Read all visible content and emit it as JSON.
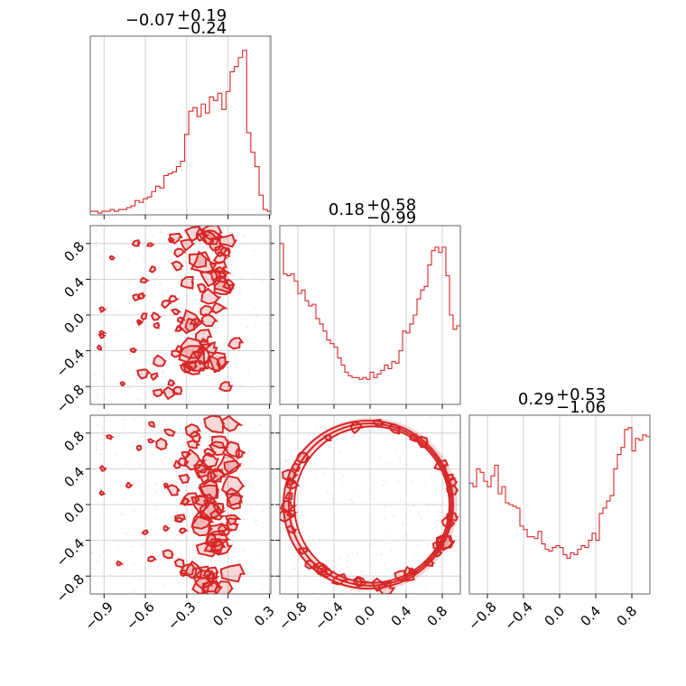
{
  "chart_data": [
    {
      "type": "histogram",
      "panel": "diag-1",
      "title_main": "−0.07",
      "title_sup": "+0.19",
      "title_sub": "−0.24",
      "x": [
        -0.99,
        -0.96,
        -0.93,
        -0.9,
        -0.87,
        -0.84,
        -0.81,
        -0.78,
        -0.75,
        -0.72,
        -0.69,
        -0.66,
        -0.63,
        -0.6,
        -0.57,
        -0.54,
        -0.51,
        -0.48,
        -0.45,
        -0.42,
        -0.39,
        -0.36,
        -0.33,
        -0.3,
        -0.27,
        -0.24,
        -0.21,
        -0.18,
        -0.15,
        -0.12,
        -0.09,
        -0.06,
        -0.03,
        0.0,
        0.03,
        0.06,
        0.09,
        0.12,
        0.15,
        0.18,
        0.21,
        0.24,
        0.27,
        0.3
      ],
      "values": [
        0.02,
        0.02,
        0.01,
        0.02,
        0.02,
        0.03,
        0.02,
        0.03,
        0.03,
        0.04,
        0.05,
        0.08,
        0.07,
        0.09,
        0.1,
        0.13,
        0.16,
        0.15,
        0.22,
        0.23,
        0.24,
        0.27,
        0.3,
        0.45,
        0.58,
        0.6,
        0.55,
        0.62,
        0.57,
        0.66,
        0.64,
        0.68,
        0.59,
        0.69,
        0.8,
        0.83,
        0.88,
        0.92,
        0.46,
        0.35,
        0.27,
        0.11,
        0.03,
        0.02
      ],
      "xlim": [
        -1.0,
        0.31
      ],
      "xticks": [
        "−0.9",
        "−0.6",
        "−0.3",
        "0.0",
        "0.3"
      ],
      "xtick_values": [
        -0.9,
        -0.6,
        -0.3,
        0.0,
        0.3
      ]
    },
    {
      "type": "histogram",
      "panel": "diag-2",
      "title_main": "0.18",
      "title_sup": "+0.58",
      "title_sub": "−0.99",
      "x": [
        -0.98,
        -0.94,
        -0.9,
        -0.86,
        -0.82,
        -0.78,
        -0.74,
        -0.7,
        -0.66,
        -0.62,
        -0.58,
        -0.54,
        -0.5,
        -0.46,
        -0.42,
        -0.38,
        -0.34,
        -0.3,
        -0.26,
        -0.22,
        -0.18,
        -0.14,
        -0.1,
        -0.06,
        -0.02,
        0.02,
        0.06,
        0.1,
        0.14,
        0.18,
        0.22,
        0.26,
        0.3,
        0.34,
        0.38,
        0.42,
        0.46,
        0.5,
        0.54,
        0.58,
        0.62,
        0.66,
        0.7,
        0.74,
        0.78,
        0.82,
        0.86,
        0.9,
        0.94,
        0.98
      ],
      "values": [
        0.9,
        0.73,
        0.72,
        0.73,
        0.69,
        0.62,
        0.64,
        0.58,
        0.55,
        0.56,
        0.48,
        0.45,
        0.41,
        0.36,
        0.34,
        0.32,
        0.26,
        0.22,
        0.18,
        0.16,
        0.15,
        0.15,
        0.14,
        0.15,
        0.14,
        0.18,
        0.15,
        0.17,
        0.19,
        0.22,
        0.2,
        0.24,
        0.23,
        0.3,
        0.41,
        0.4,
        0.45,
        0.5,
        0.59,
        0.64,
        0.66,
        0.78,
        0.86,
        0.88,
        0.85,
        0.88,
        0.72,
        0.5,
        0.42,
        0.44
      ],
      "xlim": [
        -1.0,
        1.0
      ]
    },
    {
      "type": "histogram",
      "panel": "diag-3",
      "title_main": "0.29",
      "title_sup": "+0.53",
      "title_sub": "−1.06",
      "x": [
        -0.98,
        -0.94,
        -0.9,
        -0.86,
        -0.82,
        -0.78,
        -0.74,
        -0.7,
        -0.66,
        -0.62,
        -0.58,
        -0.54,
        -0.5,
        -0.46,
        -0.42,
        -0.38,
        -0.34,
        -0.3,
        -0.26,
        -0.22,
        -0.18,
        -0.14,
        -0.1,
        -0.06,
        -0.02,
        0.02,
        0.06,
        0.1,
        0.14,
        0.18,
        0.22,
        0.26,
        0.3,
        0.34,
        0.38,
        0.42,
        0.46,
        0.5,
        0.54,
        0.58,
        0.62,
        0.66,
        0.7,
        0.74,
        0.78,
        0.82,
        0.86,
        0.9,
        0.94,
        0.98
      ],
      "values": [
        0.62,
        0.6,
        0.7,
        0.68,
        0.63,
        0.6,
        0.66,
        0.72,
        0.56,
        0.6,
        0.51,
        0.5,
        0.49,
        0.48,
        0.38,
        0.36,
        0.32,
        0.32,
        0.31,
        0.35,
        0.28,
        0.25,
        0.24,
        0.26,
        0.27,
        0.26,
        0.22,
        0.2,
        0.23,
        0.22,
        0.25,
        0.27,
        0.26,
        0.3,
        0.34,
        0.3,
        0.45,
        0.48,
        0.52,
        0.55,
        0.7,
        0.78,
        0.82,
        0.92,
        0.93,
        0.8,
        0.87,
        0.86,
        0.89,
        0.88
      ],
      "xlim": [
        -1.0,
        1.0
      ],
      "xticks": [
        "−0.8",
        "−0.4",
        "0.0",
        "0.4",
        "0.8"
      ],
      "xtick_values": [
        -0.8,
        -0.4,
        0.0,
        0.4,
        0.8
      ]
    },
    {
      "type": "scatter",
      "panel": "corner-21",
      "xlim": [
        -1.0,
        0.31
      ],
      "ylim": [
        -1.0,
        1.0
      ],
      "yticks": [
        "−0.8",
        "−0.4",
        "0.0",
        "0.4",
        "0.8"
      ],
      "ytick_values": [
        -0.8,
        -0.4,
        0.0,
        0.4,
        0.8
      ]
    },
    {
      "type": "scatter",
      "panel": "corner-31",
      "xlim": [
        -1.0,
        0.31
      ],
      "ylim": [
        -1.0,
        1.0
      ],
      "xticks": [
        "−0.9",
        "−0.6",
        "−0.3",
        "0.0",
        "0.3"
      ],
      "xtick_values": [
        -0.9,
        -0.6,
        -0.3,
        0.0,
        0.3
      ],
      "yticks": [
        "−0.8",
        "−0.4",
        "0.0",
        "0.4",
        "0.8"
      ],
      "ytick_values": [
        -0.8,
        -0.4,
        0.0,
        0.4,
        0.8
      ]
    },
    {
      "type": "scatter",
      "panel": "corner-32",
      "xlim": [
        -1.0,
        1.0
      ],
      "ylim": [
        -1.0,
        1.0
      ],
      "xticks": [
        "−0.8",
        "−0.4",
        "0.0",
        "0.4",
        "0.8"
      ],
      "xtick_values": [
        -0.8,
        -0.4,
        0.0,
        0.4,
        0.8
      ]
    }
  ],
  "colors": {
    "series": "#d62728",
    "grid": "#c8c8c8",
    "frame": "#555555"
  }
}
